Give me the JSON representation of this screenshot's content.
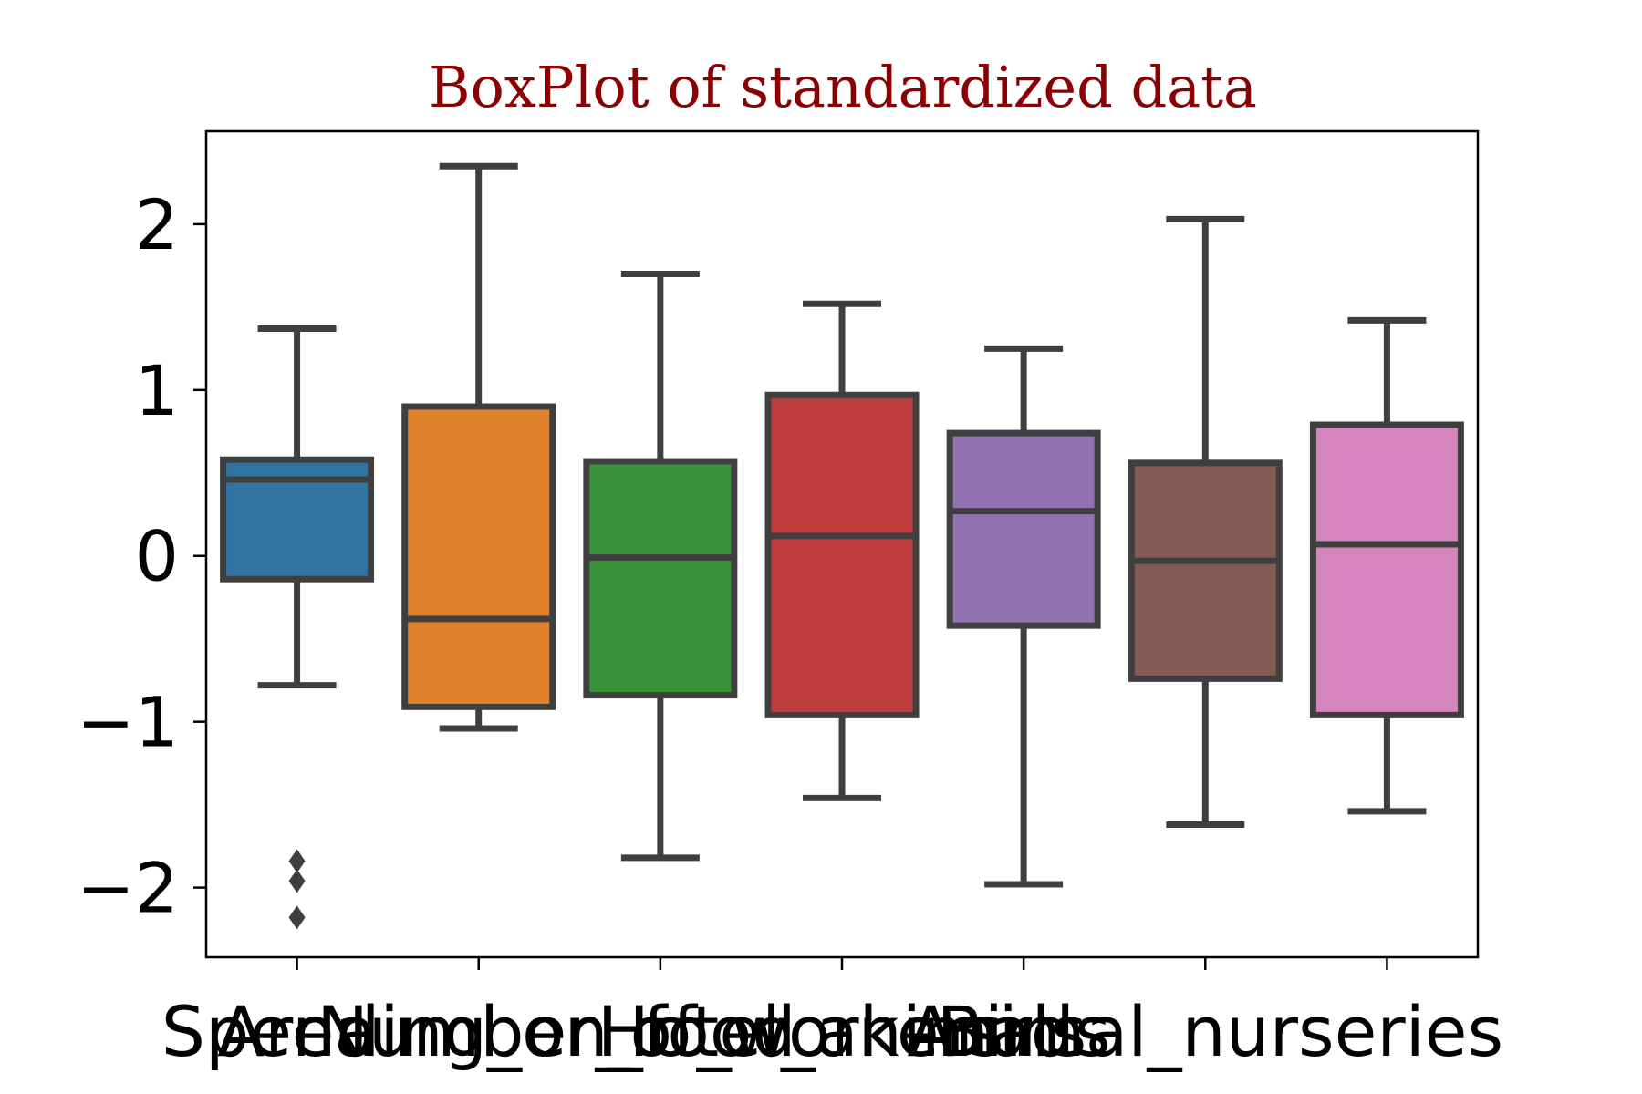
{
  "chart_data": {
    "type": "box",
    "title": "BoxPlot of standardized data",
    "xlabel": "",
    "ylabel": "",
    "ylim": [
      -2.42,
      2.56
    ],
    "yticks": [
      -2,
      -1,
      0,
      1,
      2
    ],
    "ytick_labels": [
      "−2",
      "−1",
      "0",
      "1",
      "2"
    ],
    "grid": false,
    "categories": [
      "Area",
      "Spending_on_food",
      "Number_of_workers",
      "Hotel_animals",
      "Birds",
      "Animal_nurseries",
      ""
    ],
    "boxes": [
      {
        "name": "Area",
        "whisker_low": -0.78,
        "q1": -0.14,
        "median": 0.46,
        "q3": 0.58,
        "whisker_high": 1.37,
        "outliers": [
          -1.84,
          -1.96,
          -2.18
        ]
      },
      {
        "name": "Spending_on_food",
        "whisker_low": -1.04,
        "q1": -0.91,
        "median": -0.38,
        "q3": 0.9,
        "whisker_high": 2.35,
        "outliers": []
      },
      {
        "name": "Number_of_workers",
        "whisker_low": -1.82,
        "q1": -0.84,
        "median": -0.01,
        "q3": 0.57,
        "whisker_high": 1.7,
        "outliers": []
      },
      {
        "name": "Hotel_animals",
        "whisker_low": -1.46,
        "q1": -0.96,
        "median": 0.12,
        "q3": 0.97,
        "whisker_high": 1.52,
        "outliers": []
      },
      {
        "name": "Birds",
        "whisker_low": -1.98,
        "q1": -0.42,
        "median": 0.27,
        "q3": 0.74,
        "whisker_high": 1.25,
        "outliers": []
      },
      {
        "name": "Animal_nurseries",
        "whisker_low": -1.62,
        "q1": -0.74,
        "median": -0.03,
        "q3": 0.56,
        "whisker_high": 2.03,
        "outliers": []
      },
      {
        "name": "",
        "whisker_low": -1.54,
        "q1": -0.96,
        "median": 0.07,
        "q3": 0.79,
        "whisker_high": 1.42,
        "outliers": []
      }
    ],
    "colors": {
      "title": "#8B0000",
      "outline": "#3f3f3f",
      "boxes": [
        "#3274a1",
        "#e1812c",
        "#3a923a",
        "#c03d3e",
        "#9372b2",
        "#845b53",
        "#d684bd"
      ]
    }
  }
}
